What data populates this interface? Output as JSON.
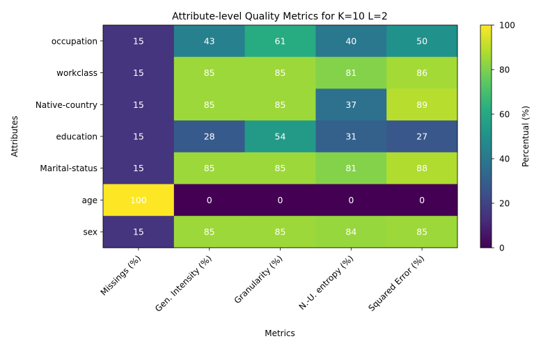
{
  "chart_data": {
    "type": "heatmap",
    "title": "Attribute-level Quality Metrics for K=10 L=2",
    "xlabel": "Metrics",
    "ylabel": "Attributes",
    "x_categories": [
      "Missings (%)",
      "Gen. Intensity (%)",
      "Granularity (%)",
      "N.-U. entropy (%)",
      "Squared Error (%)"
    ],
    "y_categories": [
      "occupation",
      "workclass",
      "Native-country",
      "education",
      "Marital-status",
      "age",
      "sex"
    ],
    "values": [
      [
        15,
        43,
        61,
        40,
        50
      ],
      [
        15,
        85,
        85,
        81,
        86
      ],
      [
        15,
        85,
        85,
        37,
        89
      ],
      [
        15,
        28,
        54,
        31,
        27
      ],
      [
        15,
        85,
        85,
        81,
        88
      ],
      [
        100,
        0,
        0,
        0,
        0
      ],
      [
        15,
        85,
        85,
        84,
        85
      ]
    ],
    "colorbar": {
      "label": "Percentual (%)",
      "range": [
        0,
        100
      ],
      "ticks": [
        0,
        20,
        40,
        60,
        80,
        100
      ],
      "colormap": "viridis"
    }
  }
}
